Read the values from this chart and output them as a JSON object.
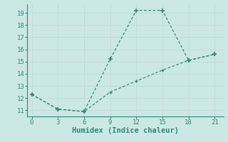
{
  "xlabel": "Humidex (Indice chaleur)",
  "line1_x": [
    0,
    3,
    6,
    9,
    12,
    15,
    18,
    21
  ],
  "line1_y": [
    12.3,
    11.1,
    10.9,
    15.2,
    19.2,
    19.2,
    15.1,
    15.6
  ],
  "line2_x": [
    0,
    3,
    6,
    9,
    12,
    15,
    18,
    21
  ],
  "line2_y": [
    12.3,
    11.1,
    10.9,
    12.5,
    13.4,
    14.3,
    15.1,
    15.6
  ],
  "line_color": "#2e8b7a",
  "bg_color": "#cce8e4",
  "grid_color": "#c0dbd8",
  "xlim": [
    -0.5,
    22
  ],
  "ylim": [
    10.5,
    19.7
  ],
  "xticks": [
    0,
    3,
    6,
    9,
    12,
    15,
    18,
    21
  ],
  "yticks": [
    11,
    12,
    13,
    14,
    15,
    16,
    17,
    18,
    19
  ],
  "tick_fontsize": 6.5,
  "label_fontsize": 7.5
}
